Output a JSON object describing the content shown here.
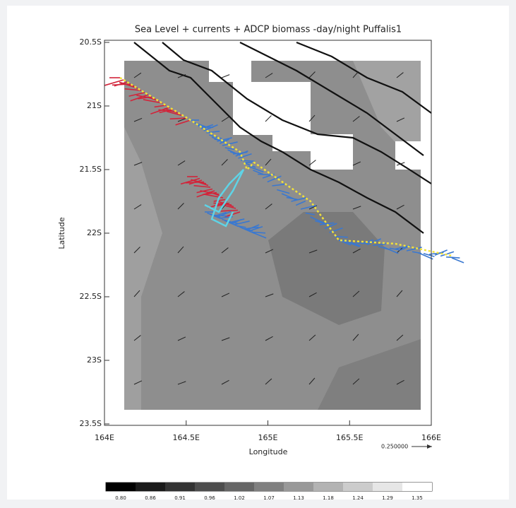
{
  "chart_data": {
    "type": "map",
    "title": "Sea Level + currents + ADCP biomass -day/night  Puffalis1",
    "x_label": "Longitude",
    "y_label": "Latitude",
    "xlim": [
      164,
      166
    ],
    "ylim": [
      -23.5,
      -20.5
    ],
    "xticks": [
      {
        "value": 164,
        "label": "164E"
      },
      {
        "value": 164.5,
        "label": "164.5E"
      },
      {
        "value": 165,
        "label": "165E"
      },
      {
        "value": 165.5,
        "label": "165.5E"
      },
      {
        "value": 166,
        "label": "166E"
      }
    ],
    "yticks": [
      {
        "value": -20.5,
        "label": "20.5S"
      },
      {
        "value": -21,
        "label": "21S"
      },
      {
        "value": -21.5,
        "label": "21.5S"
      },
      {
        "value": -22,
        "label": "22S"
      },
      {
        "value": -22.5,
        "label": "22.5S"
      },
      {
        "value": -23,
        "label": "23S"
      },
      {
        "value": -23.5,
        "label": "23.5S"
      }
    ],
    "reference_vector_label": "0.250000",
    "colorbar_ticks": [
      {
        "value": 0.8,
        "label": "0.80"
      },
      {
        "value": 0.86,
        "label": "0.86"
      },
      {
        "value": 0.91,
        "label": "0.91"
      },
      {
        "value": 0.96,
        "label": "0.96"
      },
      {
        "value": 1.02,
        "label": "1.02"
      },
      {
        "value": 1.07,
        "label": "1.07"
      },
      {
        "value": 1.13,
        "label": "1.13"
      },
      {
        "value": 1.18,
        "label": "1.18"
      },
      {
        "value": 1.24,
        "label": "1.24"
      },
      {
        "value": 1.29,
        "label": "1.29"
      },
      {
        "value": 1.35,
        "label": "1.35"
      }
    ]
  }
}
